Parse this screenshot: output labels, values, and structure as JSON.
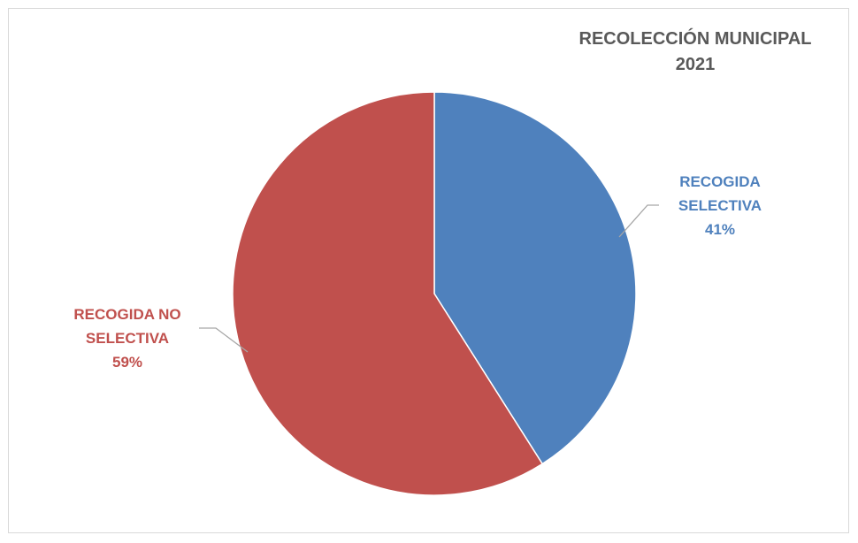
{
  "chart_data": {
    "type": "pie",
    "title_lines": [
      "RECOLECCIÓN MUNICIPAL",
      "2021"
    ],
    "slices": [
      {
        "label_lines": [
          "RECOGIDA",
          "SELECTIVA"
        ],
        "percent_label": "41%",
        "value": 41,
        "color": "#4f81bd",
        "label_color": "#4f81bd"
      },
      {
        "label_lines": [
          "RECOGIDA NO",
          "SELECTIVA"
        ],
        "percent_label": "59%",
        "value": 59,
        "color": "#c0504d",
        "label_color": "#c0504d"
      }
    ],
    "legend": "none"
  }
}
